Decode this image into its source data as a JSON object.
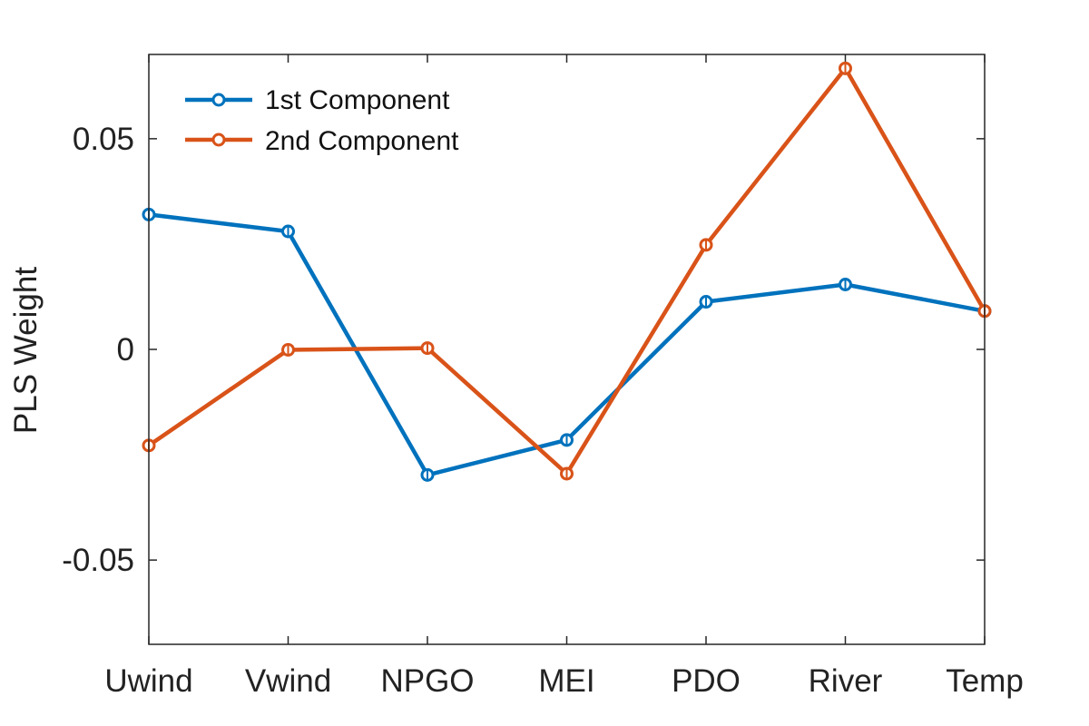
{
  "chart_data": {
    "type": "line",
    "title": "",
    "xlabel": "",
    "ylabel": "PLS Weight",
    "categories": [
      "Uwind",
      "Vwind",
      "NPGO",
      "MEI",
      "PDO",
      "River",
      "Temp"
    ],
    "ylim": [
      -0.07,
      0.07
    ],
    "yticks": [
      -0.05,
      0,
      0.05
    ],
    "ytick_labels": [
      "-0.05",
      "0",
      "0.05"
    ],
    "grid": false,
    "legend_position": "top-left",
    "marker": "circle",
    "series": [
      {
        "name": "1st Component",
        "color": "#0072BD",
        "values": [
          0.032,
          0.028,
          -0.0298,
          -0.0215,
          0.0113,
          0.0154,
          0.0091
        ]
      },
      {
        "name": "2nd Component",
        "color": "#D95319",
        "values": [
          -0.0228,
          -0.0001,
          0.0003,
          -0.0295,
          0.0248,
          0.0667,
          0.0091
        ]
      }
    ]
  }
}
